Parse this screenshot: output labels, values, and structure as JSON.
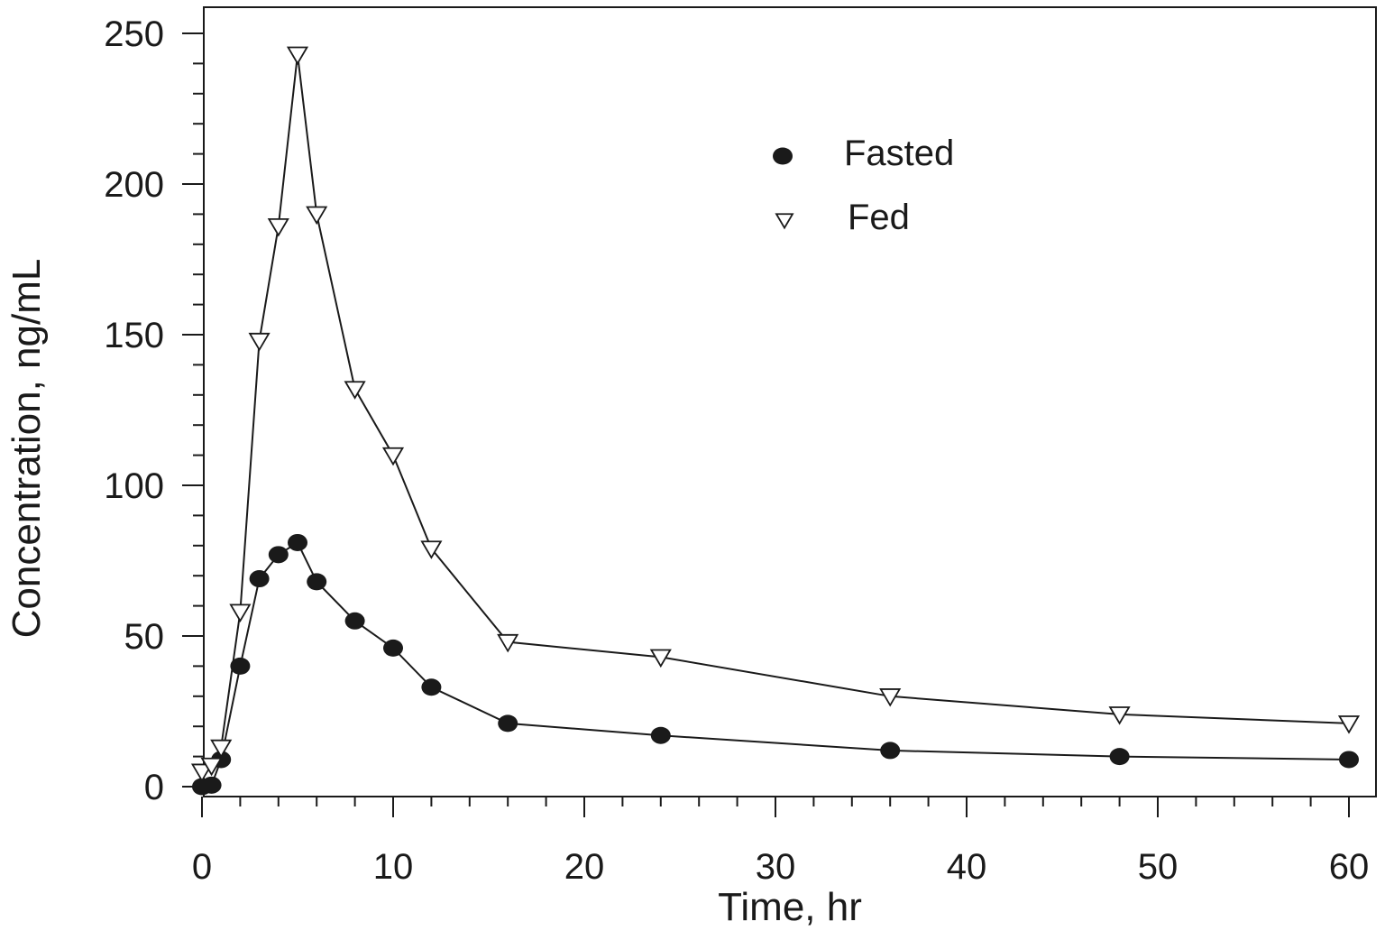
{
  "chart_data": {
    "type": "line",
    "title": "",
    "xlabel": "Time, hr",
    "ylabel": "Concentration, ng/mL",
    "xlim": [
      0,
      60
    ],
    "ylim": [
      0,
      250
    ],
    "x_ticks": [
      "0",
      "10",
      "20",
      "30",
      "40",
      "50",
      "60"
    ],
    "y_ticks": [
      "0",
      "50",
      "100",
      "150",
      "200",
      "250"
    ],
    "grid": false,
    "legend_position": "top-center",
    "series": [
      {
        "name": "Fasted",
        "marker": "filled-circle",
        "color": "#1a1a1a",
        "x": [
          0,
          0.5,
          1,
          2,
          3,
          4,
          5,
          6,
          8,
          10,
          12,
          16,
          24,
          36,
          48,
          60
        ],
        "y": [
          0,
          0.5,
          9,
          40,
          69,
          77,
          81,
          68,
          55,
          46,
          33,
          21,
          17,
          12,
          10,
          9
        ]
      },
      {
        "name": "Fed",
        "marker": "open-triangle-down",
        "color": "#1a1a1a",
        "x": [
          0,
          0.5,
          1,
          2,
          3,
          4,
          5,
          6,
          8,
          10,
          12,
          16,
          24,
          36,
          48,
          60
        ],
        "y": [
          5,
          7,
          13,
          58,
          148,
          186,
          243,
          190,
          132,
          110,
          79,
          48,
          43,
          30,
          24,
          21
        ]
      }
    ]
  }
}
